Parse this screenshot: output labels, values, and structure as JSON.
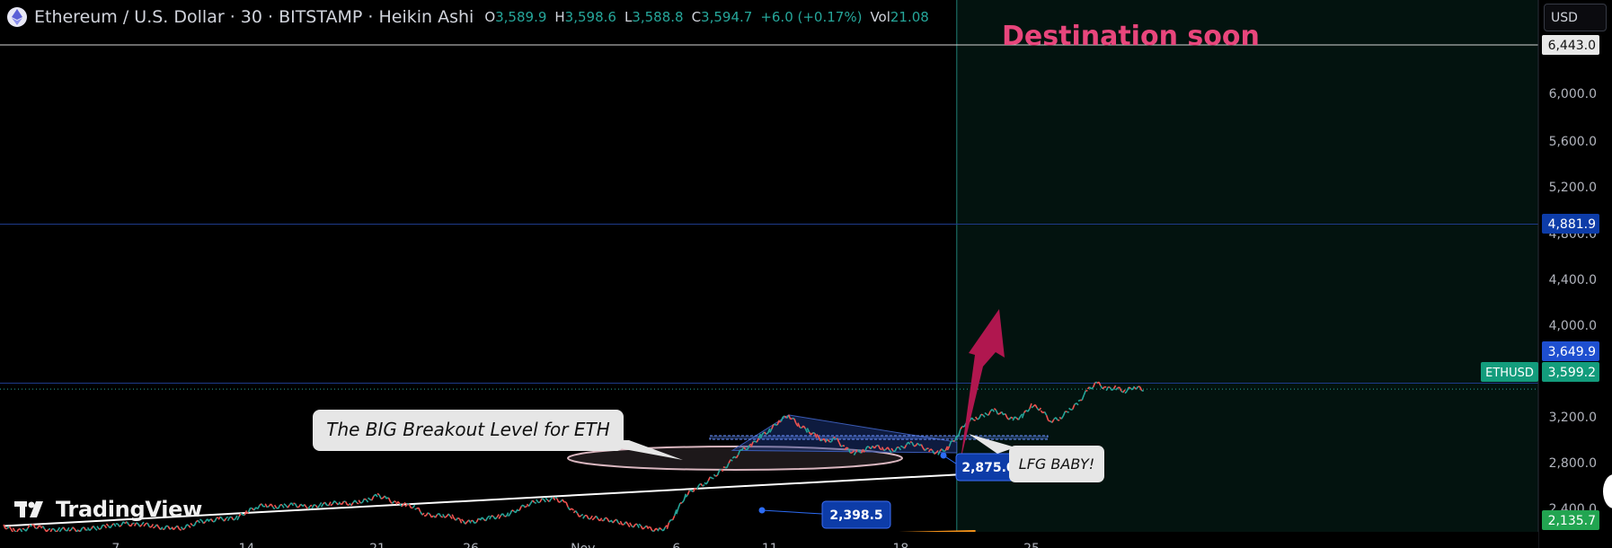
{
  "header": {
    "title": "Ethereum / U.S. Dollar · 30 · BITSTAMP · Heikin Ashi",
    "ohlc": [
      {
        "key": "O",
        "value": "3,589.9"
      },
      {
        "key": "H",
        "value": "3,598.6"
      },
      {
        "key": "L",
        "value": "3,588.8"
      },
      {
        "key": "C",
        "value": "3,594.7"
      },
      {
        "key": "",
        "value": "+6.0 (+0.17%)"
      },
      {
        "key": "Vol",
        "value": "21.08"
      }
    ]
  },
  "currency": "USD",
  "watermark": "TradingView",
  "colors": {
    "background": "#000000",
    "future_shade": "#03130f",
    "up": "#26a69a",
    "down": "#ef5350",
    "annotation_pink": "#e8467c",
    "arrow": "#b0174f",
    "trend_orange": "#f7931a",
    "level_blue": "#1e3a8a",
    "badge_blue": "#0d3ca8"
  },
  "chart_data": {
    "type": "candlestick",
    "symbol": "ETHUSD",
    "exchange": "BITSTAMP",
    "interval": "30",
    "style": "Heikin Ashi",
    "price_axis": {
      "ticks": [
        "6,000.0",
        "5,600.0",
        "5,200.0",
        "4,800.0",
        "4,400.0",
        "4,000.0",
        "3,200.0",
        "2,800.0",
        "2,400.0"
      ]
    },
    "time_axis": {
      "ticks": [
        {
          "label": "7",
          "day": 7
        },
        {
          "label": "14",
          "day": 14
        },
        {
          "label": "21",
          "day": 21
        },
        {
          "label": "26",
          "day": 26
        },
        {
          "label": "Nov",
          "day": 32
        },
        {
          "label": "6",
          "day": 37
        },
        {
          "label": "11",
          "day": 42
        },
        {
          "label": "18",
          "day": 49
        },
        {
          "label": "25",
          "day": 56
        }
      ]
    },
    "price_series": [
      [
        "2024-10-01",
        2440
      ],
      [
        "2024-10-01 12:00",
        2405
      ],
      [
        "2024-10-02",
        2400
      ],
      [
        "2024-10-02 12:00",
        2440
      ],
      [
        "2024-10-03",
        2425
      ],
      [
        "2024-10-03 12:00",
        2400
      ],
      [
        "2024-10-04",
        2410
      ],
      [
        "2024-10-04 12:00",
        2415
      ],
      [
        "2024-10-05",
        2408
      ],
      [
        "2024-10-05 12:00",
        2420
      ],
      [
        "2024-10-06",
        2422
      ],
      [
        "2024-10-06 12:00",
        2440
      ],
      [
        "2024-10-07",
        2445
      ],
      [
        "2024-10-07 12:00",
        2460
      ],
      [
        "2024-10-08",
        2450
      ],
      [
        "2024-10-08 12:00",
        2455
      ],
      [
        "2024-10-09",
        2440
      ],
      [
        "2024-10-09 12:00",
        2425
      ],
      [
        "2024-10-10",
        2430
      ],
      [
        "2024-10-10 12:00",
        2420
      ],
      [
        "2024-10-11",
        2445
      ],
      [
        "2024-10-11 12:00",
        2480
      ],
      [
        "2024-10-12",
        2480
      ],
      [
        "2024-10-12 12:00",
        2500
      ],
      [
        "2024-10-13",
        2500
      ],
      [
        "2024-10-13 12:00",
        2510
      ],
      [
        "2024-10-14",
        2560
      ],
      [
        "2024-10-14 12:00",
        2600
      ],
      [
        "2024-10-15",
        2620
      ],
      [
        "2024-10-15 12:00",
        2600
      ],
      [
        "2024-10-16",
        2610
      ],
      [
        "2024-10-16 12:00",
        2620
      ],
      [
        "2024-10-17",
        2605
      ],
      [
        "2024-10-17 12:00",
        2600
      ],
      [
        "2024-10-18",
        2620
      ],
      [
        "2024-10-18 12:00",
        2630
      ],
      [
        "2024-10-19",
        2640
      ],
      [
        "2024-10-19 12:00",
        2630
      ],
      [
        "2024-10-20",
        2645
      ],
      [
        "2024-10-20 12:00",
        2660
      ],
      [
        "2024-10-21",
        2700
      ],
      [
        "2024-10-21 12:00",
        2670
      ],
      [
        "2024-10-22",
        2630
      ],
      [
        "2024-10-22 12:00",
        2620
      ],
      [
        "2024-10-23",
        2600
      ],
      [
        "2024-10-23 12:00",
        2540
      ],
      [
        "2024-10-24",
        2530
      ],
      [
        "2024-10-24 12:00",
        2530
      ],
      [
        "2024-10-25",
        2520
      ],
      [
        "2024-10-25 12:00",
        2480
      ],
      [
        "2024-10-26",
        2470
      ],
      [
        "2024-10-26 12:00",
        2490
      ],
      [
        "2024-10-27",
        2510
      ],
      [
        "2024-10-27 12:00",
        2520
      ],
      [
        "2024-10-28",
        2540
      ],
      [
        "2024-10-28 12:00",
        2580
      ],
      [
        "2024-10-29",
        2620
      ],
      [
        "2024-10-29 12:00",
        2650
      ],
      [
        "2024-10-30",
        2660
      ],
      [
        "2024-10-30 12:00",
        2670
      ],
      [
        "2024-10-31",
        2640
      ],
      [
        "2024-10-31 12:00",
        2560
      ],
      [
        "2024-11-01",
        2520
      ],
      [
        "2024-11-01 12:00",
        2510
      ],
      [
        "2024-11-02",
        2500
      ],
      [
        "2024-11-02 12:00",
        2490
      ],
      [
        "2024-11-03",
        2470
      ],
      [
        "2024-11-03 12:00",
        2450
      ],
      [
        "2024-11-04",
        2440
      ],
      [
        "2024-11-04 12:00",
        2420
      ],
      [
        "2024-11-05",
        2400
      ],
      [
        "2024-11-05 12:00",
        2430
      ],
      [
        "2024-11-06",
        2560
      ],
      [
        "2024-11-06 12:00",
        2700
      ],
      [
        "2024-11-07",
        2760
      ],
      [
        "2024-11-07 12:00",
        2800
      ],
      [
        "2024-11-08",
        2860
      ],
      [
        "2024-11-08 12:00",
        2920
      ],
      [
        "2024-11-09",
        3000
      ],
      [
        "2024-11-09 12:00",
        3080
      ],
      [
        "2024-11-10",
        3120
      ],
      [
        "2024-11-10 12:00",
        3200
      ],
      [
        "2024-11-11",
        3250
      ],
      [
        "2024-11-11 12:00",
        3330
      ],
      [
        "2024-11-12",
        3380
      ],
      [
        "2024-11-12 12:00",
        3300
      ],
      [
        "2024-11-13",
        3250
      ],
      [
        "2024-11-13 12:00",
        3200
      ],
      [
        "2024-11-14",
        3150
      ],
      [
        "2024-11-14 12:00",
        3180
      ],
      [
        "2024-11-15",
        3100
      ],
      [
        "2024-11-15 12:00",
        3060
      ],
      [
        "2024-11-16",
        3080
      ],
      [
        "2024-11-16 12:00",
        3120
      ],
      [
        "2024-11-17",
        3100
      ],
      [
        "2024-11-17 12:00",
        3080
      ],
      [
        "2024-11-18",
        3100
      ],
      [
        "2024-11-18 12:00",
        3140
      ],
      [
        "2024-11-19",
        3120
      ],
      [
        "2024-11-19 12:00",
        3080
      ],
      [
        "2024-11-20",
        3060
      ],
      [
        "2024-11-20 12:00",
        3100
      ],
      [
        "2024-11-21",
        3200
      ],
      [
        "2024-11-21 12:00",
        3320
      ],
      [
        "2024-11-22",
        3350
      ],
      [
        "2024-11-22 12:00",
        3380
      ],
      [
        "2024-11-23",
        3420
      ],
      [
        "2024-11-23 12:00",
        3380
      ],
      [
        "2024-11-24",
        3340
      ],
      [
        "2024-11-24 12:00",
        3370
      ],
      [
        "2024-11-25",
        3460
      ],
      [
        "2024-11-25 12:00",
        3430
      ],
      [
        "2024-11-26",
        3330
      ],
      [
        "2024-11-26 12:00",
        3350
      ],
      [
        "2024-11-27",
        3420
      ],
      [
        "2024-11-27 12:00",
        3480
      ],
      [
        "2024-11-28",
        3590
      ],
      [
        "2024-11-28 12:00",
        3650
      ],
      [
        "2024-11-29",
        3600
      ],
      [
        "2024-11-29 12:00",
        3610
      ],
      [
        "2024-11-30",
        3580
      ],
      [
        "2024-11-30 12:00",
        3620
      ],
      [
        "2024-12-01",
        3595
      ]
    ],
    "levels": [
      {
        "price": 6443.0,
        "label": "6,443.0"
      },
      {
        "price": 4881.9,
        "label": "4,881.9"
      },
      {
        "price": 3649.9,
        "label": "3,649.9"
      }
    ],
    "current_price": {
      "symbol": "ETHUSD",
      "price": 3599.2,
      "label": "3,599.2"
    },
    "last_label": "2,135.7",
    "trendlines": [
      {
        "name": "breakout-trendline",
        "color": "#ffffff",
        "from": [
          "2024-10-01",
          2440
        ],
        "to": [
          "2024-11-21",
          2875
        ]
      },
      {
        "name": "support-trendline",
        "color": "#f7931a",
        "from": [
          "2024-10-01",
          2210
        ],
        "to": [
          "2024-11-22",
          2398.5
        ]
      }
    ],
    "price_badges": [
      {
        "label": "2,875.0",
        "at": [
          "2024-11-21",
          2875
        ]
      },
      {
        "label": "2,398.5",
        "at": [
          "2024-11-14",
          2398.5
        ]
      }
    ],
    "annotations": [
      {
        "text": "The BIG Breakout Level for ETH",
        "style": "callout",
        "target": [
          "2024-11-06",
          2860
        ]
      },
      {
        "text": "LFG BABY!",
        "style": "callout",
        "target": [
          "2024-11-21",
          3050
        ]
      },
      {
        "text": "Destination soon",
        "style": "text",
        "anchor": [
          "2024-11-22",
          6300
        ]
      }
    ],
    "projection": {
      "marker": "arrow-up",
      "from": [
        "2024-11-21",
        3050
      ],
      "to": [
        "2024-11-23",
        4150
      ]
    },
    "vertical_marker": "2024-11-21",
    "pattern": {
      "kind": "descending-triangle",
      "points": [
        [
          "2024-11-09",
          3080
        ],
        [
          "2024-11-12",
          3380
        ],
        [
          "2024-11-21",
          3150
        ],
        [
          "2024-11-21",
          3060
        ]
      ]
    },
    "grid": false,
    "legend": "top-left"
  }
}
